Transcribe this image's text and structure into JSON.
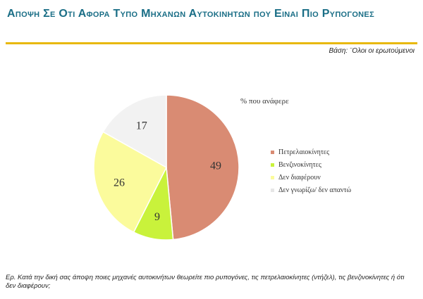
{
  "header": {
    "title": "Αποψη Σε Οτι Αφορα Τυπο Μηχανων Αυτοκινητων που Ειναι Πιο Ρυπογονες",
    "base_note": "Βάση: ¨Ολοι οι ερωτούμενοι"
  },
  "chart_data": {
    "type": "pie",
    "title": "% που ανάφερε",
    "slices": [
      {
        "label": "Πετρελαιοκίνητες",
        "value": 49,
        "color": "#d98b73"
      },
      {
        "label": "Βενζινοκίνητες",
        "value": 9,
        "color": "#c9f23b"
      },
      {
        "label": "Δεν διαφέρουν",
        "value": 26,
        "color": "#fbfb9c"
      },
      {
        "label": "Δεν γνωρίζω/  δεν απαντώ",
        "value": 17,
        "color": "#f2f2f2"
      }
    ],
    "start": "top",
    "direction": "clockwise",
    "legend_position": "right"
  },
  "footnote": "Ερ. Κατά την δική σας άποψη ποιες μηχανές αυτοκινήτων θεωρείτε πιο ρυπογόνες, τις πετρελαιοκίνητες (ντήζελ), τις βενζινοκίνητες ή  ότι δεν διαφέρουν;"
}
